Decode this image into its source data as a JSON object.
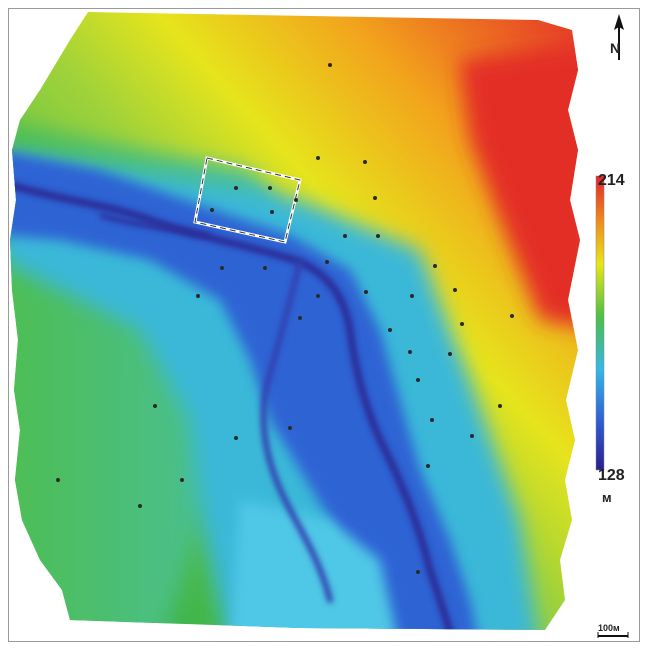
{
  "legend": {
    "max_value": "214",
    "min_value": "128",
    "unit": "м",
    "color_stops": [
      "#2b1f8f",
      "#2f5fd6",
      "#35b7e8",
      "#4cbf46",
      "#e8e51a",
      "#f08a1c",
      "#e3232a"
    ]
  },
  "scale_bar": {
    "label": "100м"
  },
  "north_arrow": {
    "label": "N"
  },
  "colors": {
    "frame": "#9a9a9a",
    "marker": "#2a2a2a"
  }
}
